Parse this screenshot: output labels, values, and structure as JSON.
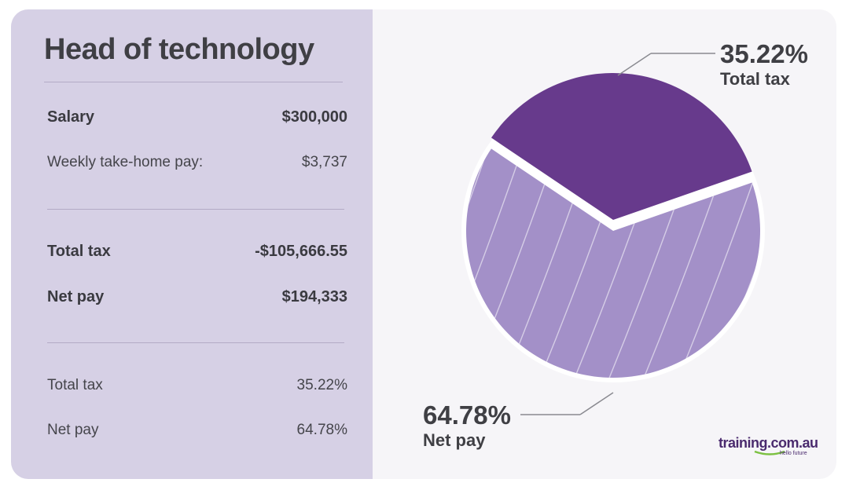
{
  "panel": {
    "title": "Head of technology",
    "salary": {
      "label": "Salary",
      "value": "$300,000"
    },
    "weekly": {
      "label": "Weekly take-home pay:",
      "value": "$3,737"
    },
    "total_tax": {
      "label": "Total tax",
      "value": "-$105,666.55"
    },
    "net_pay": {
      "label": "Net pay",
      "value": "$194,333"
    },
    "tax_pct": {
      "label": "Total tax",
      "value": "35.22%"
    },
    "net_pct": {
      "label": "Net pay",
      "value": "64.78%"
    }
  },
  "brand": {
    "name": "training.com.au",
    "tagline": "hello future"
  },
  "colors": {
    "left_panel": "#d6d0e5",
    "tax_slice": "#673a8c",
    "net_slice": "#a390c8",
    "text": "#3f3f44"
  },
  "chart_data": {
    "type": "pie",
    "title": "",
    "slices": [
      {
        "label": "Total tax",
        "value": 35.22,
        "display": "35.22%"
      },
      {
        "label": "Net pay",
        "value": 64.78,
        "display": "64.78%"
      }
    ]
  }
}
